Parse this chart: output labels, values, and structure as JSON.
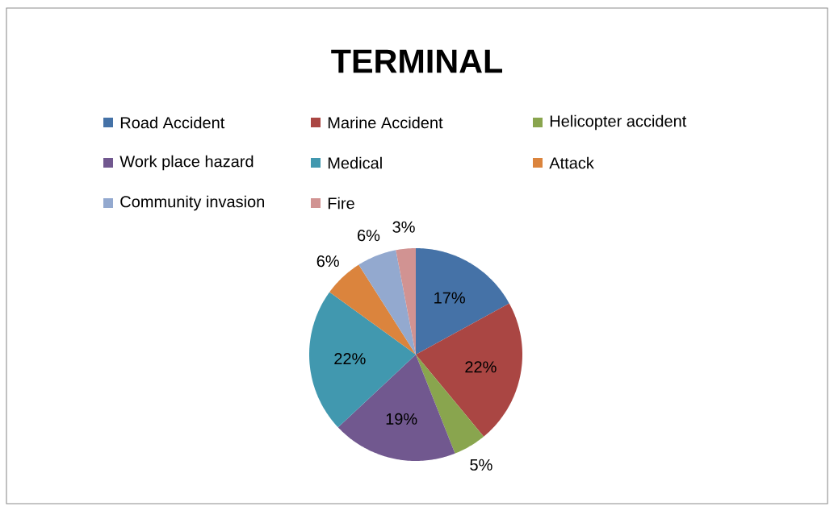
{
  "chart_data": {
    "type": "pie",
    "title": "TERMINAL",
    "categories": [
      "Road Accident",
      "Marine Accident",
      "Helicopter accident",
      "Work place hazard",
      "Medical",
      "Attack",
      "Community invasion",
      "Fire"
    ],
    "values": [
      17,
      22,
      5,
      19,
      22,
      6,
      6,
      3
    ],
    "colors": [
      "#4572a7",
      "#aa4643",
      "#89a54e",
      "#71588f",
      "#4198af",
      "#db843d",
      "#93a9cf",
      "#d19392"
    ],
    "value_labels": [
      "17%",
      "22%",
      "5%",
      "19%",
      "22%",
      "6%",
      "6%",
      "3%"
    ],
    "legend": "top"
  }
}
